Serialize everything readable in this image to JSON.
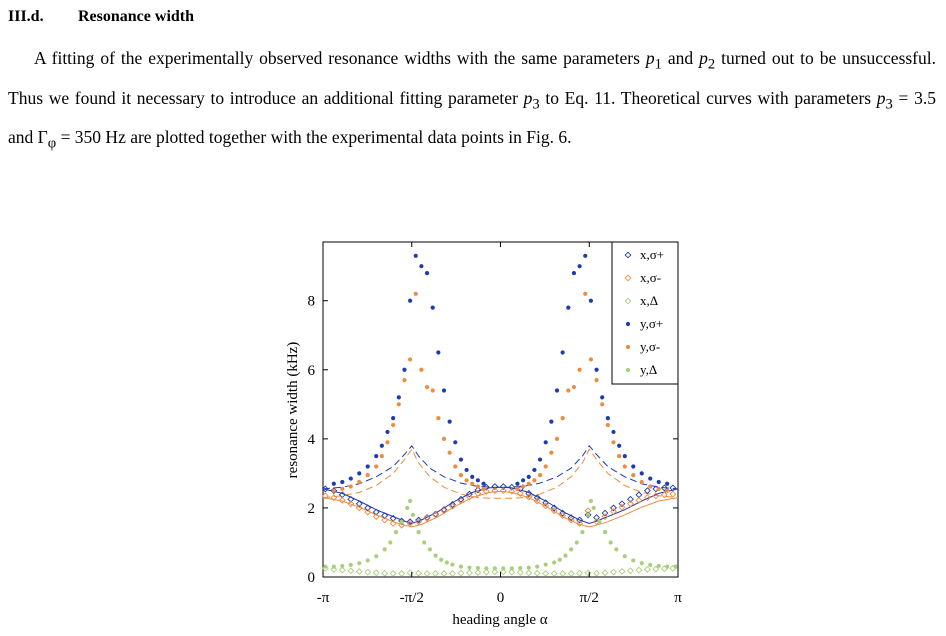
{
  "section": {
    "number": "III.d.",
    "title": "Resonance width"
  },
  "paragraph": {
    "s1": "A fitting of the experimentally observed resonance widths with the same parameters ",
    "p1": "p",
    "p1_sub": "1",
    "s2": " and ",
    "p2": "p",
    "p2_sub": "2",
    "s3": " turned out to be unsuccessful. Thus we found it necessary to introduce an additional fitting parameter ",
    "p3": "p",
    "p3_sub": "3",
    "s4": " to Eq. 11. Theoretical curves with parameters ",
    "p3b": "p",
    "p3b_sub": "3",
    "s5": " = 3.5 and Γ",
    "gamma_sub": "φ",
    "s6": " = 350 Hz are plotted together with the experimental data points in Fig. 6."
  },
  "chart_data": {
    "type": "scatter",
    "xlabel": "heading angle α",
    "ylabel": "resonance width (kHz)",
    "xlim": [
      -3.1416,
      3.1416
    ],
    "ylim": [
      0,
      9.7
    ],
    "xticks": [
      {
        "v": -3.1416,
        "label": "-π"
      },
      {
        "v": -1.5708,
        "label": "-π/2"
      },
      {
        "v": 0,
        "label": "0"
      },
      {
        "v": 1.5708,
        "label": "π/2"
      },
      {
        "v": 3.1416,
        "label": "π"
      }
    ],
    "yticks": [
      {
        "v": 0,
        "label": "0"
      },
      {
        "v": 2,
        "label": "2"
      },
      {
        "v": 4,
        "label": "4"
      },
      {
        "v": 6,
        "label": "6"
      },
      {
        "v": 8,
        "label": "8"
      }
    ],
    "legend_position": "top-right",
    "series": [
      {
        "name": "x,σ+",
        "color": "#1f3bb0",
        "marker": "diamond-open",
        "x": [
          -3.1,
          -2.95,
          -2.8,
          -2.65,
          -2.5,
          -2.35,
          -2.2,
          -2.05,
          -1.9,
          -1.75,
          -1.6,
          -1.45,
          -1.3,
          -1.15,
          -1.0,
          -0.85,
          -0.7,
          -0.55,
          -0.4,
          -0.25,
          -0.1,
          0.05,
          0.2,
          0.35,
          0.5,
          0.65,
          0.8,
          0.95,
          1.1,
          1.25,
          1.4,
          1.55,
          1.7,
          1.85,
          2.0,
          2.15,
          2.3,
          2.45,
          2.6,
          2.75,
          2.9,
          3.05
        ],
        "y": [
          2.55,
          2.5,
          2.38,
          2.25,
          2.12,
          2.0,
          1.88,
          1.78,
          1.7,
          1.62,
          1.6,
          1.65,
          1.72,
          1.82,
          1.95,
          2.1,
          2.25,
          2.4,
          2.52,
          2.6,
          2.62,
          2.62,
          2.6,
          2.55,
          2.42,
          2.3,
          2.15,
          2.0,
          1.85,
          1.72,
          1.65,
          1.8,
          1.72,
          1.85,
          2.0,
          2.12,
          2.25,
          2.38,
          2.5,
          2.55,
          2.58,
          2.58
        ]
      },
      {
        "name": "x,σ-",
        "color": "#f08a3c",
        "marker": "diamond-open",
        "x": [
          -3.1,
          -2.95,
          -2.8,
          -2.65,
          -2.5,
          -2.35,
          -2.2,
          -2.05,
          -1.9,
          -1.75,
          -1.6,
          -1.45,
          -1.3,
          -1.15,
          -1.0,
          -0.85,
          -0.7,
          -0.55,
          -0.4,
          -0.25,
          -0.1,
          0.05,
          0.2,
          0.35,
          0.5,
          0.65,
          0.8,
          0.95,
          1.1,
          1.25,
          1.4,
          1.55,
          1.7,
          1.85,
          2.0,
          2.15,
          2.3,
          2.45,
          2.6,
          2.75,
          2.9,
          3.05
        ],
        "y": [
          2.35,
          2.3,
          2.22,
          2.12,
          2.0,
          1.88,
          1.75,
          1.65,
          1.55,
          1.5,
          1.55,
          1.6,
          1.7,
          1.8,
          1.92,
          2.05,
          2.2,
          2.32,
          2.42,
          2.48,
          2.5,
          2.5,
          2.48,
          2.42,
          2.32,
          2.2,
          2.06,
          1.92,
          1.78,
          1.65,
          1.55,
          1.92,
          1.6,
          1.75,
          1.9,
          2.02,
          2.12,
          2.22,
          2.3,
          2.35,
          2.38,
          2.4
        ]
      },
      {
        "name": "x,Δ",
        "color": "#a8cf7a",
        "marker": "diamond-open",
        "x": [
          -3.1,
          -2.95,
          -2.8,
          -2.65,
          -2.5,
          -2.35,
          -2.2,
          -2.05,
          -1.9,
          -1.75,
          -1.6,
          -1.45,
          -1.3,
          -1.15,
          -1.0,
          -0.85,
          -0.7,
          -0.55,
          -0.4,
          -0.25,
          -0.1,
          0.05,
          0.2,
          0.35,
          0.5,
          0.65,
          0.8,
          0.95,
          1.1,
          1.25,
          1.4,
          1.55,
          1.7,
          1.85,
          2.0,
          2.15,
          2.3,
          2.45,
          2.6,
          2.75,
          2.9,
          3.05
        ],
        "y": [
          0.25,
          0.22,
          0.2,
          0.18,
          0.16,
          0.14,
          0.12,
          0.11,
          0.1,
          0.1,
          0.12,
          0.11,
          0.1,
          0.1,
          0.1,
          0.1,
          0.11,
          0.12,
          0.13,
          0.14,
          0.15,
          0.15,
          0.14,
          0.13,
          0.12,
          0.11,
          0.1,
          0.1,
          0.1,
          0.1,
          0.11,
          0.12,
          0.11,
          0.12,
          0.14,
          0.16,
          0.18,
          0.2,
          0.22,
          0.23,
          0.24,
          0.25
        ]
      },
      {
        "name": "y,σ+",
        "color": "#1f3bb0",
        "marker": "dot",
        "x": [
          -2.95,
          -2.8,
          -2.65,
          -2.5,
          -2.35,
          -2.2,
          -2.1,
          -2.0,
          -1.9,
          -1.8,
          -1.7,
          -1.6,
          -1.5,
          -1.4,
          -1.3,
          -1.2,
          -1.1,
          -1.0,
          -0.9,
          -0.8,
          -0.7,
          -0.6,
          -0.5,
          -0.4,
          -0.3,
          0.3,
          0.4,
          0.5,
          0.6,
          0.7,
          0.8,
          0.9,
          1.0,
          1.1,
          1.2,
          1.3,
          1.4,
          1.5,
          1.6,
          1.7,
          1.8,
          1.9,
          2.0,
          2.1,
          2.2,
          2.35,
          2.5,
          2.65,
          2.8,
          2.95
        ],
        "y": [
          2.7,
          2.75,
          2.85,
          3.0,
          3.2,
          3.5,
          3.8,
          4.2,
          4.6,
          5.2,
          6.0,
          8.0,
          9.3,
          9.0,
          8.8,
          7.8,
          6.5,
          5.4,
          4.5,
          3.9,
          3.4,
          3.1,
          2.9,
          2.8,
          2.7,
          2.7,
          2.8,
          2.9,
          3.1,
          3.4,
          3.9,
          4.5,
          5.4,
          6.5,
          7.8,
          8.8,
          9.0,
          9.3,
          8.0,
          6.0,
          5.2,
          4.6,
          4.2,
          3.8,
          3.5,
          3.2,
          3.0,
          2.85,
          2.75,
          2.7
        ]
      },
      {
        "name": "y,σ-",
        "color": "#f08a3c",
        "marker": "dot",
        "x": [
          -2.95,
          -2.8,
          -2.65,
          -2.5,
          -2.35,
          -2.2,
          -2.1,
          -2.0,
          -1.9,
          -1.8,
          -1.7,
          -1.6,
          -1.5,
          -1.4,
          -1.3,
          -1.2,
          -1.1,
          -1.0,
          -0.9,
          -0.8,
          -0.7,
          -0.6,
          -0.5,
          -0.4,
          -0.3,
          0.3,
          0.4,
          0.5,
          0.6,
          0.7,
          0.8,
          0.9,
          1.0,
          1.1,
          1.2,
          1.3,
          1.4,
          1.5,
          1.6,
          1.7,
          1.8,
          1.9,
          2.0,
          2.1,
          2.2,
          2.35,
          2.5,
          2.65,
          2.8,
          2.95
        ],
        "y": [
          2.5,
          2.55,
          2.62,
          2.75,
          2.95,
          3.2,
          3.5,
          3.9,
          4.4,
          5.0,
          5.7,
          6.3,
          8.2,
          6.0,
          5.5,
          5.4,
          4.6,
          4.0,
          3.6,
          3.2,
          2.95,
          2.8,
          2.7,
          2.62,
          2.55,
          2.55,
          2.62,
          2.7,
          2.8,
          2.95,
          3.2,
          3.6,
          4.0,
          4.6,
          5.4,
          5.5,
          6.0,
          8.2,
          6.3,
          5.7,
          5.0,
          4.4,
          3.9,
          3.5,
          3.2,
          2.95,
          2.75,
          2.62,
          2.55,
          2.5
        ]
      },
      {
        "name": "y,Δ",
        "color": "#a8cf7a",
        "marker": "dot",
        "x": [
          -3.1,
          -2.95,
          -2.8,
          -2.65,
          -2.5,
          -2.35,
          -2.2,
          -2.05,
          -1.95,
          -1.85,
          -1.75,
          -1.65,
          -1.6,
          -1.55,
          -1.45,
          -1.35,
          -1.25,
          -1.15,
          -1.05,
          -0.95,
          -0.85,
          -0.7,
          -0.55,
          -0.4,
          -0.25,
          -0.1,
          0.05,
          0.2,
          0.35,
          0.5,
          0.65,
          0.8,
          0.95,
          1.05,
          1.15,
          1.25,
          1.35,
          1.45,
          1.55,
          1.6,
          1.65,
          1.75,
          1.85,
          1.95,
          2.05,
          2.2,
          2.35,
          2.5,
          2.65,
          2.8,
          2.95,
          3.1
        ],
        "y": [
          0.3,
          0.3,
          0.32,
          0.35,
          0.4,
          0.48,
          0.6,
          0.8,
          1.0,
          1.3,
          1.6,
          2.0,
          2.2,
          1.8,
          1.3,
          1.0,
          0.8,
          0.62,
          0.5,
          0.42,
          0.36,
          0.3,
          0.27,
          0.26,
          0.25,
          0.25,
          0.25,
          0.25,
          0.26,
          0.27,
          0.3,
          0.36,
          0.42,
          0.5,
          0.62,
          0.8,
          1.0,
          1.3,
          1.8,
          2.2,
          2.0,
          1.6,
          1.3,
          1.0,
          0.8,
          0.6,
          0.48,
          0.4,
          0.35,
          0.32,
          0.3,
          0.3
        ]
      }
    ],
    "theory_curves": [
      {
        "color": "#1f3bb0",
        "style": "dashed",
        "x": [
          -3.1416,
          -2.8,
          -2.5,
          -2.2,
          -1.9,
          -1.7,
          -1.5708,
          -1.45,
          -1.25,
          -1.0,
          -0.7,
          -0.4,
          -0.15,
          0,
          0.15,
          0.4,
          0.7,
          1.0,
          1.25,
          1.45,
          1.5708,
          1.7,
          1.9,
          2.2,
          2.5,
          2.8,
          3.1416
        ],
        "y": [
          2.55,
          2.6,
          2.7,
          2.9,
          3.2,
          3.55,
          3.8,
          3.5,
          3.15,
          2.9,
          2.72,
          2.62,
          2.6,
          2.6,
          2.6,
          2.62,
          2.72,
          2.9,
          3.15,
          3.5,
          3.8,
          3.55,
          3.2,
          2.9,
          2.7,
          2.6,
          2.55
        ]
      },
      {
        "color": "#f08a3c",
        "style": "dashed",
        "x": [
          -3.1416,
          -2.8,
          -2.5,
          -2.2,
          -1.9,
          -1.7,
          -1.5708,
          -1.45,
          -1.25,
          -1.0,
          -0.7,
          -0.4,
          -0.15,
          0,
          0.15,
          0.4,
          0.7,
          1.0,
          1.25,
          1.45,
          1.5708,
          1.7,
          1.9,
          2.2,
          2.5,
          2.8,
          3.1416
        ],
        "y": [
          2.3,
          2.35,
          2.45,
          2.65,
          3.0,
          3.4,
          3.7,
          3.3,
          2.9,
          2.6,
          2.4,
          2.3,
          2.28,
          2.28,
          2.28,
          2.3,
          2.4,
          2.6,
          2.9,
          3.3,
          3.7,
          3.4,
          3.0,
          2.65,
          2.45,
          2.35,
          2.3
        ]
      },
      {
        "color": "#1f3bb0",
        "style": "solid",
        "x": [
          -3.1416,
          -2.8,
          -2.5,
          -2.2,
          -1.9,
          -1.7,
          -1.5708,
          -1.4,
          -1.1,
          -0.8,
          -0.5,
          -0.2,
          0,
          0.2,
          0.5,
          0.8,
          1.1,
          1.4,
          1.5708,
          1.7,
          1.9,
          2.2,
          2.5,
          2.8,
          3.1416
        ],
        "y": [
          2.55,
          2.42,
          2.2,
          1.95,
          1.75,
          1.62,
          1.55,
          1.65,
          1.9,
          2.2,
          2.45,
          2.58,
          2.6,
          2.58,
          2.45,
          2.2,
          1.9,
          1.65,
          1.55,
          1.62,
          1.75,
          1.95,
          2.2,
          2.42,
          2.55
        ]
      },
      {
        "color": "#f08a3c",
        "style": "solid",
        "x": [
          -3.1416,
          -2.8,
          -2.5,
          -2.2,
          -1.9,
          -1.7,
          -1.5708,
          -1.4,
          -1.1,
          -0.8,
          -0.5,
          -0.2,
          0,
          0.2,
          0.5,
          0.8,
          1.1,
          1.4,
          1.5708,
          1.7,
          1.9,
          2.2,
          2.5,
          2.8,
          3.1416
        ],
        "y": [
          2.3,
          2.2,
          2.02,
          1.8,
          1.6,
          1.5,
          1.45,
          1.52,
          1.75,
          2.05,
          2.3,
          2.45,
          2.48,
          2.45,
          2.3,
          2.05,
          1.75,
          1.52,
          1.45,
          1.5,
          1.6,
          1.8,
          2.02,
          2.2,
          2.3
        ]
      }
    ]
  }
}
